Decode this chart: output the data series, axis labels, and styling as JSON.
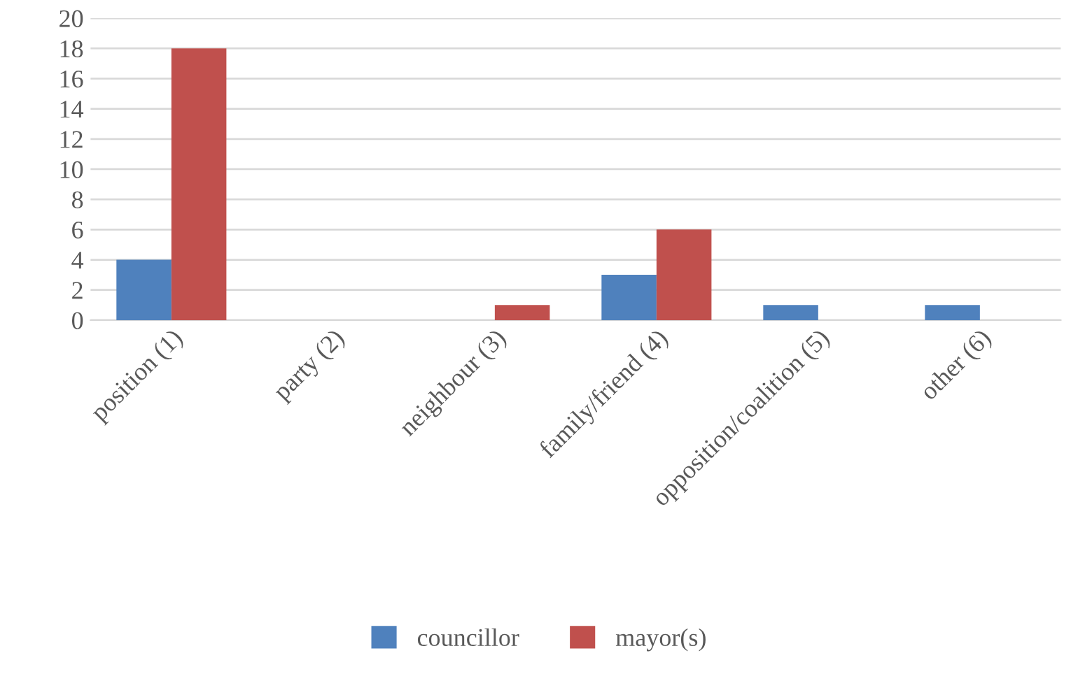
{
  "chart_data": {
    "type": "bar",
    "categories": [
      "position (1)",
      "party (2)",
      "neighbour (3)",
      "family/friend (4)",
      "opposition/coalition (5)",
      "other (6)"
    ],
    "series": [
      {
        "name": "councillor",
        "color": "#4f81bd",
        "values": [
          4,
          0,
          0,
          3,
          1,
          1
        ]
      },
      {
        "name": "mayor(s)",
        "color": "#c0504d",
        "values": [
          18,
          0,
          1,
          6,
          0,
          0
        ]
      }
    ],
    "ylim": [
      0,
      20
    ],
    "yticks": [
      0,
      2,
      4,
      6,
      8,
      10,
      12,
      14,
      16,
      18,
      20
    ],
    "grid": "y",
    "legend": "bottom"
  }
}
